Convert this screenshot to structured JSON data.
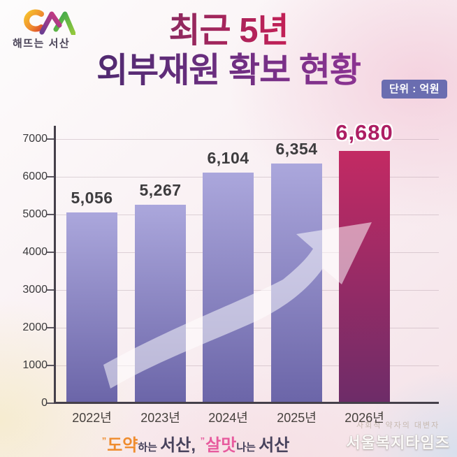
{
  "logo": {
    "text": "해뜨는 서산"
  },
  "title": {
    "line1": "최근 5년",
    "line2": "외부재원 확보 현황",
    "unit_badge": "단위 : 억원"
  },
  "chart_data": {
    "type": "bar",
    "title": "최근 5년 외부재원 확보 현황",
    "unit": "억원",
    "categories": [
      "2022년",
      "2023년",
      "2024년",
      "2025년",
      "2026년"
    ],
    "values": [
      5056,
      5267,
      6104,
      6354,
      6680
    ],
    "value_labels": [
      "5,056",
      "5,267",
      "6,104",
      "6,354",
      "6,680"
    ],
    "highlight_index": 4,
    "ylim": [
      0,
      7000
    ],
    "yticks": [
      0,
      1000,
      2000,
      3000,
      4000,
      5000,
      6000,
      7000
    ],
    "grid": "horizontal",
    "legend": "none",
    "annotations": [
      "upward-growth-arrow"
    ]
  },
  "colors": {
    "bar_top": "#aba7dc",
    "bar_bottom": "#6b65a8",
    "highlight_bar_top": "#c32a63",
    "highlight_bar_bottom": "#6d2c68",
    "value_label": "#3d3c3e",
    "highlight_value_label": "#ad1e63",
    "axis": "#45404a",
    "badge_bg": "#6a6db0",
    "title_line1_from": "#8c2a60",
    "title_line1_to": "#c31f56",
    "title_line2_from": "#502a70",
    "title_line2_to": "#8c3392"
  },
  "footer": {
    "slogan": [
      {
        "text": "”",
        "color": "#ef8c2e",
        "size": "mark"
      },
      {
        "text": "도약",
        "color": "#ef8c2e",
        "size": "big"
      },
      {
        "text": "하는 ",
        "color": "#47425c",
        "size": "small"
      },
      {
        "text": "서산, ",
        "color": "#47425c",
        "size": "big"
      },
      {
        "text": "”",
        "color": "#e75b9e",
        "size": "mark"
      },
      {
        "text": "살맛",
        "color": "#e75b9e",
        "size": "big"
      },
      {
        "text": "나는 ",
        "color": "#47425c",
        "size": "small"
      },
      {
        "text": "서산",
        "color": "#47425c",
        "size": "big"
      }
    ],
    "watermark_tagline": "사회적 약자의 대변자",
    "watermark_brand": "서울복지타임즈"
  }
}
